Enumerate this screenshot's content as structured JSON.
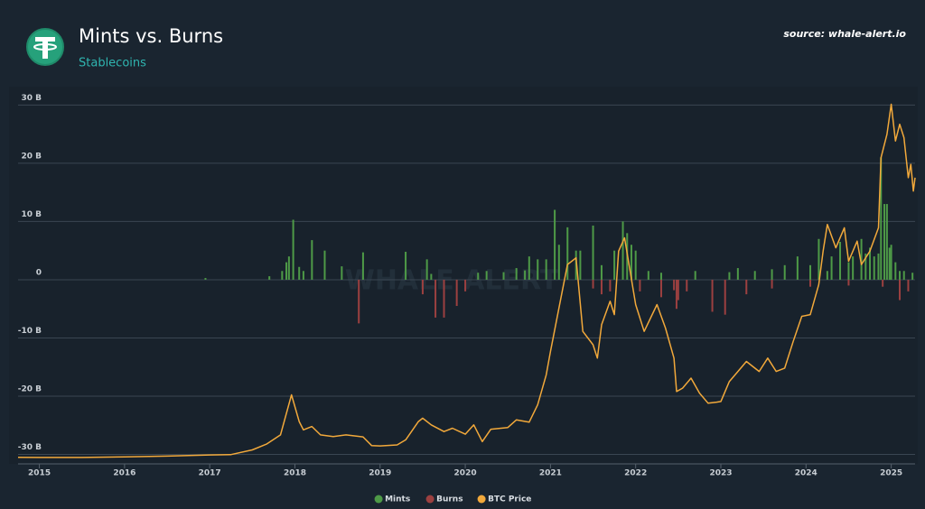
{
  "chart_data": {
    "type": "bar-line",
    "title": "Mints vs. Burns",
    "subtitle": "Stablecoins",
    "source": "source: whale-alert.io",
    "watermark": "WHALE ALERT",
    "xlim": [
      2014.75,
      2025.28
    ],
    "xticks": [
      2015,
      2016,
      2017,
      2018,
      2019,
      2020,
      2021,
      2022,
      2023,
      2024,
      2025
    ],
    "ylim": [
      -31,
      33
    ],
    "yticks": [
      {
        "value": -30,
        "label": "-30 B"
      },
      {
        "value": -20,
        "label": "-20 B"
      },
      {
        "value": -10,
        "label": "-10 B"
      },
      0,
      {
        "value": 10,
        "label": "10 B"
      },
      {
        "value": 20,
        "label": "20 B"
      },
      {
        "value": 30,
        "label": "30 B"
      }
    ],
    "y2lim": [
      -600,
      111000
    ],
    "grid": true,
    "legend": "bottom",
    "series": [
      {
        "name": "Mints",
        "color": "#4e9a47",
        "kind": "bar",
        "x": [
          2016.95,
          2017.7,
          2017.85,
          2017.9,
          2017.93,
          2017.98,
          2018.05,
          2018.1,
          2018.2,
          2018.35,
          2018.55,
          2018.8,
          2019.3,
          2019.55,
          2019.6,
          2020.15,
          2020.25,
          2020.45,
          2020.6,
          2020.7,
          2020.75,
          2020.85,
          2020.95,
          2021.05,
          2021.1,
          2021.2,
          2021.3,
          2021.35,
          2021.5,
          2021.6,
          2021.75,
          2021.85,
          2021.9,
          2021.95,
          2022.0,
          2022.15,
          2022.3,
          2022.7,
          2023.1,
          2023.2,
          2023.4,
          2023.6,
          2023.75,
          2023.9,
          2024.05,
          2024.15,
          2024.25,
          2024.3,
          2024.4,
          2024.5,
          2024.55,
          2024.65,
          2024.7,
          2024.75,
          2024.8,
          2024.85,
          2024.88,
          2024.92,
          2024.95,
          2024.98,
          2025.0,
          2025.05,
          2025.1,
          2025.15,
          2025.25
        ],
        "values": [
          0.3,
          0.6,
          1.5,
          3,
          4,
          10.3,
          2.2,
          1.5,
          6.8,
          5,
          2.3,
          4.7,
          4.8,
          3.5,
          1,
          1.2,
          1.5,
          1.3,
          2,
          1.6,
          4,
          3.5,
          3.5,
          12,
          6,
          9,
          5,
          5,
          9.3,
          2.5,
          5,
          10,
          8,
          6,
          5,
          1.5,
          1.2,
          1.5,
          1.3,
          2,
          1.5,
          1.8,
          2.5,
          4,
          2.5,
          7,
          1.5,
          4,
          6.5,
          3,
          4,
          7,
          4.5,
          5.5,
          4,
          4.5,
          21,
          13,
          13,
          5.5,
          6,
          3,
          1.5,
          1.5,
          1.2
        ]
      },
      {
        "name": "Burns",
        "color": "#9c4040",
        "kind": "bar",
        "x": [
          2018.75,
          2019.5,
          2019.65,
          2019.75,
          2019.9,
          2020.0,
          2021.5,
          2021.6,
          2021.7,
          2022.05,
          2022.3,
          2022.45,
          2022.48,
          2022.5,
          2022.6,
          2022.9,
          2023.05,
          2023.3,
          2023.6,
          2024.05,
          2024.5,
          2024.9,
          2025.1,
          2025.2
        ],
        "values": [
          -7.5,
          -2.5,
          -6.5,
          -6.5,
          -4.5,
          -2,
          -1.5,
          -2.5,
          -2,
          -2,
          -3,
          -1.8,
          -5,
          -3.5,
          -2,
          -5.5,
          -6,
          -2.5,
          -1.5,
          -1.2,
          -1,
          -1.2,
          -3.5,
          -2
        ]
      },
      {
        "name": "BTC Price",
        "color": "#f2a93b",
        "kind": "line",
        "axis": "y2",
        "x": [
          2014.75,
          2015.0,
          2015.5,
          2016.0,
          2016.5,
          2017.0,
          2017.25,
          2017.5,
          2017.67,
          2017.83,
          2017.96,
          2018.05,
          2018.1,
          2018.2,
          2018.3,
          2018.45,
          2018.6,
          2018.8,
          2018.9,
          2019.0,
          2019.2,
          2019.3,
          2019.45,
          2019.5,
          2019.6,
          2019.75,
          2019.85,
          2020.0,
          2020.1,
          2020.2,
          2020.3,
          2020.5,
          2020.6,
          2020.75,
          2020.85,
          2020.95,
          2021.0,
          2021.1,
          2021.2,
          2021.3,
          2021.38,
          2021.5,
          2021.55,
          2021.6,
          2021.7,
          2021.75,
          2021.8,
          2021.87,
          2022.0,
          2022.1,
          2022.25,
          2022.35,
          2022.45,
          2022.48,
          2022.55,
          2022.65,
          2022.75,
          2022.85,
          2022.95,
          2023.0,
          2023.1,
          2023.2,
          2023.3,
          2023.45,
          2023.55,
          2023.65,
          2023.75,
          2023.85,
          2023.95,
          2024.05,
          2024.15,
          2024.2,
          2024.25,
          2024.35,
          2024.45,
          2024.5,
          2024.6,
          2024.65,
          2024.75,
          2024.85,
          2024.88,
          2024.95,
          2025.0,
          2025.05,
          2025.1,
          2025.15,
          2025.2,
          2025.23,
          2025.26,
          2025.28
        ],
        "values": [
          300,
          250,
          250,
          430,
          650,
          1000,
          1100,
          2500,
          4300,
          7000,
          19000,
          11000,
          8500,
          9500,
          7000,
          6500,
          7000,
          6400,
          3800,
          3700,
          4000,
          5500,
          11000,
          12000,
          10000,
          8000,
          9000,
          7200,
          10000,
          5000,
          8700,
          9200,
          11500,
          10800,
          16000,
          25000,
          32000,
          45000,
          58000,
          60000,
          38000,
          34000,
          30000,
          40000,
          47000,
          43000,
          62000,
          66000,
          46000,
          38000,
          46000,
          39000,
          30000,
          20000,
          21000,
          24000,
          19500,
          16500,
          16800,
          17000,
          23000,
          26000,
          29000,
          26000,
          30000,
          26000,
          27000,
          35000,
          42500,
          43000,
          52000,
          62000,
          70000,
          63000,
          69000,
          59000,
          65000,
          58000,
          62000,
          69000,
          90000,
          97000,
          106000,
          95000,
          100000,
          96000,
          84000,
          88000,
          80000,
          84000
        ]
      }
    ]
  }
}
